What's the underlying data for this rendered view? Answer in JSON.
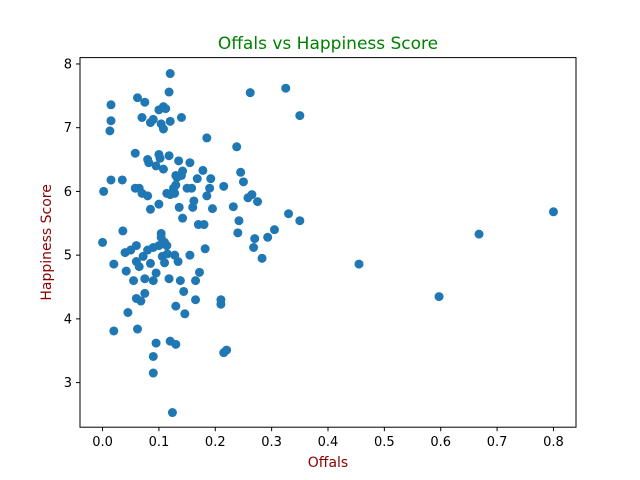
{
  "chart_data": {
    "type": "scatter",
    "title": "Offals vs Happiness Score",
    "xlabel": "Offals",
    "ylabel": "Happiness Score",
    "xlim": [
      -0.04,
      0.84
    ],
    "ylim": [
      2.3,
      8.1
    ],
    "xticks": [
      "0.0",
      "0.1",
      "0.2",
      "0.3",
      "0.4",
      "0.5",
      "0.6",
      "0.7",
      "0.8"
    ],
    "yticks": [
      "3",
      "4",
      "5",
      "6",
      "7",
      "8"
    ],
    "grid": false,
    "legend": "none",
    "colors": {
      "points": "#1f77b4",
      "title": "#008000",
      "axis_labels": "#8b0000",
      "axes": "#000000"
    },
    "points": [
      [
        0.015,
        7.36
      ],
      [
        0.015,
        7.11
      ],
      [
        0.013,
        6.95
      ],
      [
        0.002,
        6.0
      ],
      [
        0.015,
        6.18
      ],
      [
        0.035,
        6.18
      ],
      [
        0.0,
        5.2
      ],
      [
        0.02,
        4.86
      ],
      [
        0.02,
        3.81
      ],
      [
        0.036,
        5.38
      ],
      [
        0.04,
        5.04
      ],
      [
        0.042,
        4.75
      ],
      [
        0.045,
        4.1
      ],
      [
        0.05,
        5.08
      ],
      [
        0.055,
        4.6
      ],
      [
        0.058,
        6.05
      ],
      [
        0.058,
        6.6
      ],
      [
        0.06,
        5.15
      ],
      [
        0.06,
        4.9
      ],
      [
        0.06,
        4.32
      ],
      [
        0.062,
        3.84
      ],
      [
        0.062,
        7.47
      ],
      [
        0.065,
        6.05
      ],
      [
        0.065,
        4.82
      ],
      [
        0.068,
        4.28
      ],
      [
        0.07,
        7.16
      ],
      [
        0.07,
        5.97
      ],
      [
        0.072,
        4.98
      ],
      [
        0.075,
        7.4
      ],
      [
        0.075,
        4.63
      ],
      [
        0.075,
        4.4
      ],
      [
        0.08,
        6.5
      ],
      [
        0.08,
        5.93
      ],
      [
        0.08,
        5.08
      ],
      [
        0.082,
        6.45
      ],
      [
        0.085,
        7.08
      ],
      [
        0.085,
        5.72
      ],
      [
        0.085,
        4.87
      ],
      [
        0.09,
        7.13
      ],
      [
        0.09,
        5.12
      ],
      [
        0.09,
        4.6
      ],
      [
        0.09,
        3.41
      ],
      [
        0.09,
        3.15
      ],
      [
        0.095,
        3.62
      ],
      [
        0.095,
        6.4
      ],
      [
        0.095,
        4.72
      ],
      [
        0.1,
        7.28
      ],
      [
        0.1,
        6.58
      ],
      [
        0.1,
        5.8
      ],
      [
        0.1,
        5.15
      ],
      [
        0.102,
        6.52
      ],
      [
        0.104,
        7.06
      ],
      [
        0.104,
        5.34
      ],
      [
        0.104,
        5.28
      ],
      [
        0.106,
        4.98
      ],
      [
        0.108,
        7.33
      ],
      [
        0.108,
        6.98
      ],
      [
        0.108,
        6.35
      ],
      [
        0.11,
        5.2
      ],
      [
        0.11,
        4.88
      ],
      [
        0.112,
        7.3
      ],
      [
        0.114,
        5.97
      ],
      [
        0.114,
        5.15
      ],
      [
        0.115,
        5.02
      ],
      [
        0.118,
        7.56
      ],
      [
        0.118,
        6.56
      ],
      [
        0.118,
        4.63
      ],
      [
        0.12,
        7.85
      ],
      [
        0.12,
        7.1
      ],
      [
        0.12,
        5.95
      ],
      [
        0.12,
        3.65
      ],
      [
        0.124,
        2.53
      ],
      [
        0.126,
        6.05
      ],
      [
        0.128,
        5.97
      ],
      [
        0.128,
        5.0
      ],
      [
        0.13,
        6.25
      ],
      [
        0.13,
        6.1
      ],
      [
        0.13,
        4.2
      ],
      [
        0.13,
        3.6
      ],
      [
        0.132,
        6.22
      ],
      [
        0.134,
        4.9
      ],
      [
        0.135,
        6.48
      ],
      [
        0.136,
        5.75
      ],
      [
        0.138,
        4.6
      ],
      [
        0.14,
        7.16
      ],
      [
        0.14,
        6.25
      ],
      [
        0.142,
        6.32
      ],
      [
        0.142,
        5.58
      ],
      [
        0.144,
        4.43
      ],
      [
        0.146,
        4.08
      ],
      [
        0.15,
        6.05
      ],
      [
        0.155,
        6.45
      ],
      [
        0.155,
        5.0
      ],
      [
        0.158,
        6.05
      ],
      [
        0.16,
        5.75
      ],
      [
        0.162,
        5.85
      ],
      [
        0.165,
        4.6
      ],
      [
        0.165,
        4.3
      ],
      [
        0.168,
        6.2
      ],
      [
        0.17,
        5.48
      ],
      [
        0.172,
        4.73
      ],
      [
        0.178,
        6.33
      ],
      [
        0.18,
        5.48
      ],
      [
        0.182,
        5.1
      ],
      [
        0.185,
        6.84
      ],
      [
        0.185,
        5.93
      ],
      [
        0.19,
        6.05
      ],
      [
        0.192,
        6.2
      ],
      [
        0.195,
        5.73
      ],
      [
        0.21,
        4.3
      ],
      [
        0.21,
        4.23
      ],
      [
        0.215,
        6.08
      ],
      [
        0.215,
        3.47
      ],
      [
        0.22,
        3.51
      ],
      [
        0.232,
        5.76
      ],
      [
        0.238,
        6.7
      ],
      [
        0.24,
        5.35
      ],
      [
        0.242,
        5.54
      ],
      [
        0.245,
        6.3
      ],
      [
        0.25,
        6.15
      ],
      [
        0.258,
        5.9
      ],
      [
        0.262,
        7.55
      ],
      [
        0.265,
        5.95
      ],
      [
        0.268,
        5.12
      ],
      [
        0.27,
        5.26
      ],
      [
        0.275,
        5.84
      ],
      [
        0.283,
        4.95
      ],
      [
        0.293,
        5.28
      ],
      [
        0.305,
        5.4
      ],
      [
        0.325,
        7.62
      ],
      [
        0.33,
        5.65
      ],
      [
        0.35,
        7.19
      ],
      [
        0.35,
        5.54
      ],
      [
        0.455,
        4.86
      ],
      [
        0.597,
        4.35
      ],
      [
        0.668,
        5.33
      ],
      [
        0.8,
        5.68
      ]
    ]
  }
}
